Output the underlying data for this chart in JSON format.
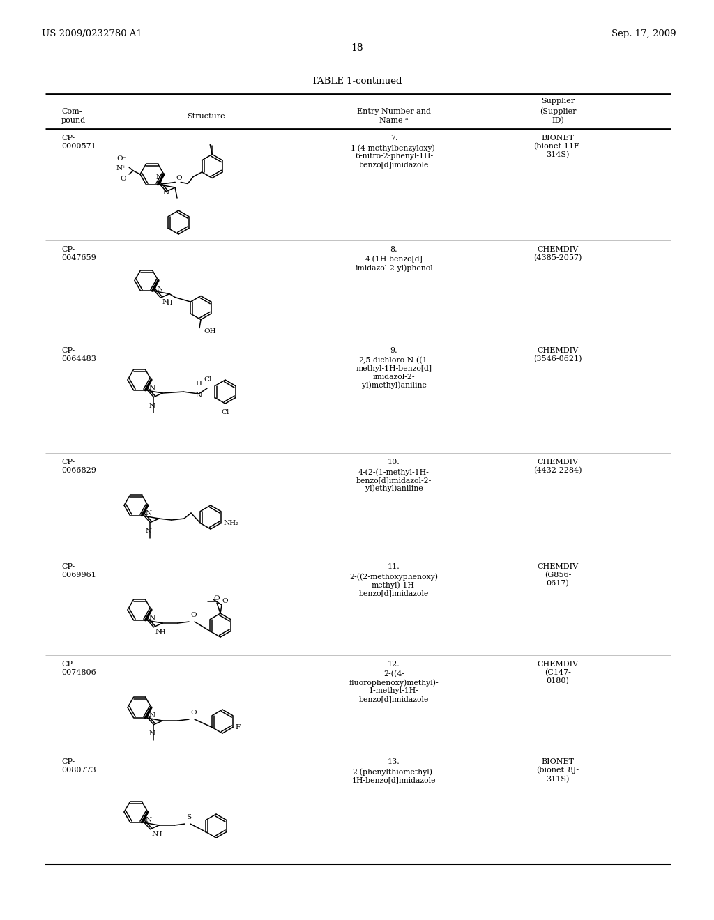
{
  "page_left": "US 2009/0232780 A1",
  "page_right": "Sep. 17, 2009",
  "page_number": "18",
  "table_title": "TABLE 1-continued",
  "background": "#ffffff",
  "text_color": "#000000",
  "rows": [
    {
      "compound": "CP-\n0000571",
      "entry_num": "7.",
      "entry_name": "1-(4-methylbenzyloxy)-\n6-nitro-2-phenyl-1H-\nbenzo[d]imidazole",
      "supplier": "BIONET\n(bionet-11F-\n314S)"
    },
    {
      "compound": "CP-\n0047659",
      "entry_num": "8.",
      "entry_name": "4-(1H-benzo[d]\nimidazol-2-yl)phenol",
      "supplier": "CHEMDIV\n(4385-2057)"
    },
    {
      "compound": "CP-\n0064483",
      "entry_num": "9.",
      "entry_name": "2,5-dichloro-N-((1-\nmethyl-1H-benzo[d]\nimidazol-2-\nyl)methyl)aniline",
      "supplier": "CHEMDIV\n(3546-0621)"
    },
    {
      "compound": "CP-\n0066829",
      "entry_num": "10.",
      "entry_name": "4-(2-(1-methyl-1H-\nbenzo[d]imidazol-2-\nyl)ethyl)aniline",
      "supplier": "CHEMDIV\n(4432-2284)"
    },
    {
      "compound": "CP-\n0069961",
      "entry_num": "11.",
      "entry_name": "2-((2-methoxyphenoxy)\nmethyl)-1H-\nbenzo[d]imidazole",
      "supplier": "CHEMDIV\n(G856-\n0617)"
    },
    {
      "compound": "CP-\n0074806",
      "entry_num": "12.",
      "entry_name": "2-((4-\nfluorophenoxy)methyl)-\n1-methyl-1H-\nbenzo[d]imidazole",
      "supplier": "CHEMDIV\n(C147-\n0180)"
    },
    {
      "compound": "CP-\n0080773",
      "entry_num": "13.",
      "entry_name": "2-(phenylthiomethyl)-\n1H-benzo[d]imidazole",
      "supplier": "BIONET\n(bionet_8J-\n311S)"
    }
  ]
}
